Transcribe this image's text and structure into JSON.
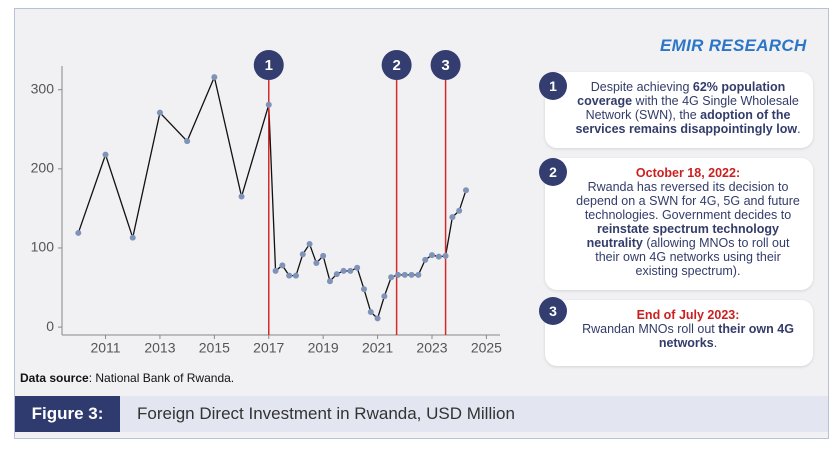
{
  "logo": "EMIR RESEARCH",
  "chart_data": {
    "type": "line",
    "color": "#111111",
    "marker_color": "#7f93b8",
    "annotation_color": "#d42a2a",
    "x": [
      2010,
      2011,
      2012,
      2013,
      2014,
      2015,
      2016,
      2017,
      2017.25,
      2017.5,
      2017.75,
      2018,
      2018.25,
      2018.5,
      2018.75,
      2019,
      2019.25,
      2019.5,
      2019.75,
      2020,
      2020.25,
      2020.5,
      2020.75,
      2021,
      2021.25,
      2021.5,
      2021.75,
      2022,
      2022.25,
      2022.5,
      2022.75,
      2023,
      2023.25,
      2023.5,
      2023.75,
      2024,
      2024.25
    ],
    "values": [
      119,
      218,
      113,
      271,
      235,
      316,
      165,
      281,
      71,
      78,
      65,
      65,
      92,
      105,
      81,
      90,
      58,
      67,
      71,
      71,
      75,
      48,
      19,
      11,
      39,
      63,
      66,
      66,
      66,
      66,
      85,
      91,
      89,
      90,
      139,
      147,
      173
    ],
    "xlim": [
      2009.4,
      2025.5
    ],
    "ylim": [
      -10,
      330
    ],
    "xticks": [
      2011,
      2013,
      2015,
      2017,
      2019,
      2021,
      2023,
      2025
    ],
    "yticks": [
      0,
      100,
      200,
      300
    ],
    "markers": [
      {
        "label": "1",
        "x": 2017
      },
      {
        "label": "2",
        "x": 2021.7
      },
      {
        "label": "3",
        "x": 2023.5
      }
    ]
  },
  "notes": [
    {
      "label": "1",
      "parts": [
        {
          "text": "Despite achieving "
        },
        {
          "text": "62% population coverage",
          "bold": true
        },
        {
          "text": " with the 4G Single Wholesale Network (SWN), the "
        },
        {
          "text": "adoption of the services remains disappointingly low",
          "bold": true
        },
        {
          "text": "."
        }
      ]
    },
    {
      "label": "2",
      "heading": "October 18, 2022:",
      "parts": [
        {
          "text": "Rwanda has reversed its decision to depend on a SWN for 4G, 5G and future technologies. Government decides to "
        },
        {
          "text": "reinstate spectrum technology neutrality",
          "bold": true
        },
        {
          "text": " (allowing MNOs to roll out their own 4G networks using their existing spectrum)."
        }
      ]
    },
    {
      "label": "3",
      "heading": "End of July 2023:",
      "parts": [
        {
          "text": "Rwandan MNOs roll out "
        },
        {
          "text": "their own 4G networks",
          "bold": true
        },
        {
          "text": "."
        }
      ]
    }
  ],
  "source": [
    {
      "text": "Data source",
      "bold": true
    },
    {
      "text": ": National Bank of Rwanda."
    }
  ],
  "caption": {
    "label": "Figure 3:",
    "text": "Foreign Direct Investment in Rwanda, USD Million"
  }
}
